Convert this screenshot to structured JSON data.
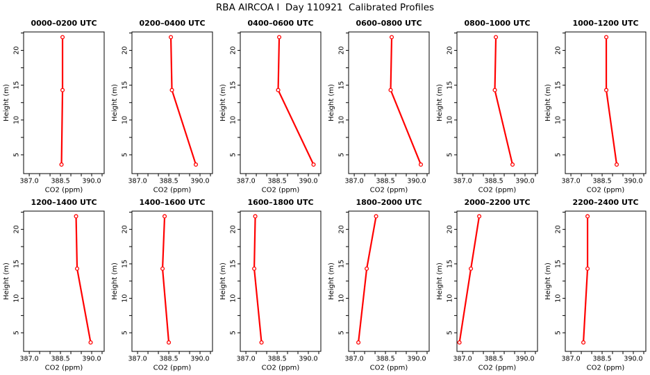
{
  "figure": {
    "title": "RBA AIRCOA I  Day 110921  Calibrated Profiles"
  },
  "axes": {
    "xlabel": "CO2 (ppm)",
    "ylabel": "Height (m)",
    "xlim": [
      386.73,
      390.6
    ],
    "ylim": [
      2.3,
      22.65
    ],
    "xticks": [
      387.0,
      387.5,
      388.0,
      388.5,
      389.0,
      389.5,
      390.0,
      390.5
    ],
    "xtick_labeled": [
      {
        "value": 387.0,
        "label": "387.0"
      },
      {
        "value": 388.5,
        "label": "388.5"
      },
      {
        "value": 390.0,
        "label": "390.0"
      }
    ],
    "yticks": [
      5,
      7.5,
      10,
      12.5,
      15,
      17.5,
      20,
      22.5
    ],
    "ytick_labeled": [
      {
        "value": 5,
        "label": "5"
      },
      {
        "value": 10,
        "label": "10"
      },
      {
        "value": 15,
        "label": "15"
      },
      {
        "value": 20,
        "label": "20"
      }
    ],
    "line_color": "#ff0000",
    "marker": "open-circle",
    "grid": false
  },
  "chart_data": [
    {
      "type": "line",
      "title": "0000–0200 UTC",
      "height_m": [
        3.6,
        14.3,
        21.9
      ],
      "co2_ppm": [
        388.55,
        388.6,
        388.6
      ]
    },
    {
      "type": "line",
      "title": "0200–0400 UTC",
      "height_m": [
        3.6,
        14.3,
        21.9
      ],
      "co2_ppm": [
        389.8,
        388.65,
        388.6
      ]
    },
    {
      "type": "line",
      "title": "0400–0600 UTC",
      "height_m": [
        3.6,
        14.3,
        21.9
      ],
      "co2_ppm": [
        390.25,
        388.55,
        388.6
      ]
    },
    {
      "type": "line",
      "title": "0600–0800 UTC",
      "height_m": [
        3.6,
        14.3,
        21.9
      ],
      "co2_ppm": [
        390.2,
        388.75,
        388.8
      ]
    },
    {
      "type": "line",
      "title": "0800–1000 UTC",
      "height_m": [
        3.6,
        14.3,
        21.9
      ],
      "co2_ppm": [
        389.4,
        388.55,
        388.6
      ]
    },
    {
      "type": "line",
      "title": "1000–1200 UTC",
      "height_m": [
        3.6,
        14.3,
        21.9
      ],
      "co2_ppm": [
        389.2,
        388.7,
        388.7
      ]
    },
    {
      "type": "line",
      "title": "1200–1400 UTC",
      "height_m": [
        3.6,
        14.3,
        21.9
      ],
      "co2_ppm": [
        389.95,
        389.3,
        389.25
      ]
    },
    {
      "type": "line",
      "title": "1400–1600 UTC",
      "height_m": [
        3.6,
        14.3,
        21.9
      ],
      "co2_ppm": [
        388.5,
        388.2,
        388.3
      ]
    },
    {
      "type": "line",
      "title": "1600–1800 UTC",
      "height_m": [
        3.6,
        14.3,
        21.9
      ],
      "co2_ppm": [
        387.75,
        387.4,
        387.45
      ]
    },
    {
      "type": "line",
      "title": "1800–2000 UTC",
      "height_m": [
        3.6,
        14.3,
        21.9
      ],
      "co2_ppm": [
        387.2,
        387.6,
        388.05
      ]
    },
    {
      "type": "line",
      "title": "2000–2200 UTC",
      "height_m": [
        3.6,
        14.3,
        21.9
      ],
      "co2_ppm": [
        386.85,
        387.4,
        387.8
      ]
    },
    {
      "type": "line",
      "title": "2200–2400 UTC",
      "height_m": [
        3.6,
        14.3,
        21.9
      ],
      "co2_ppm": [
        387.6,
        387.8,
        387.8
      ]
    }
  ]
}
